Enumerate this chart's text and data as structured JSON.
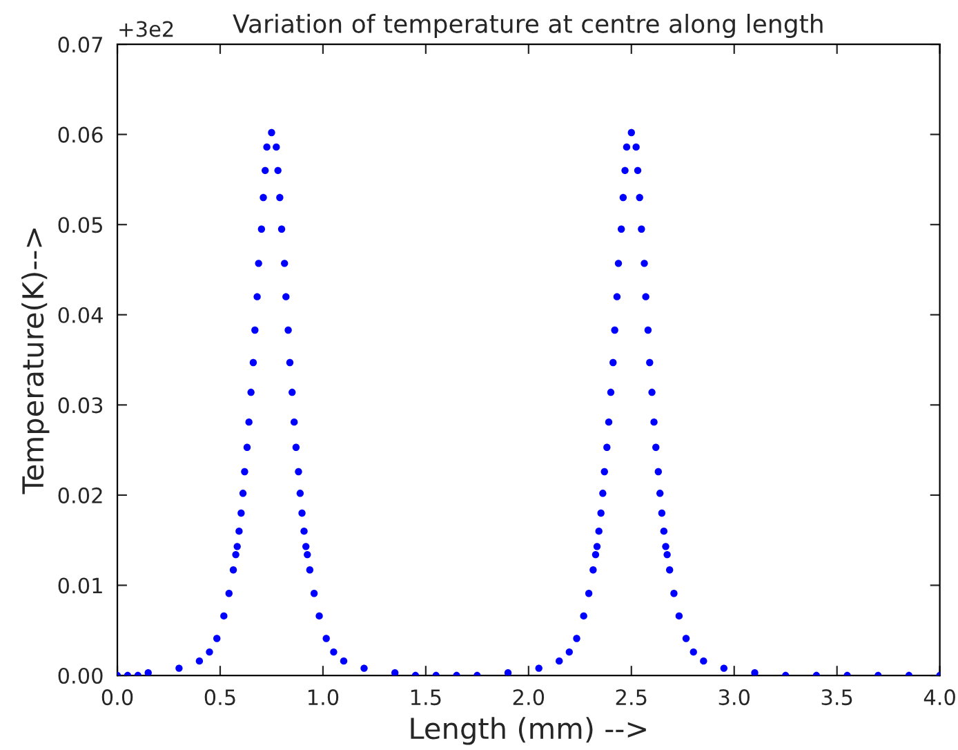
{
  "chart_data": {
    "type": "scatter",
    "title": "Variation of temperature at centre along length",
    "xlabel": "Length (mm) -->",
    "ylabel": "Temperature(K)-->",
    "annotations": [
      "+3e2"
    ],
    "series": [
      {
        "color": "#0000ff",
        "x": [
          0.0,
          0.05,
          0.1,
          0.15,
          0.3,
          0.399,
          0.448,
          0.484,
          0.518,
          0.543,
          0.564,
          0.576,
          0.583,
          0.592,
          0.602,
          0.611,
          0.619,
          0.631,
          0.64,
          0.65,
          0.661,
          0.669,
          0.68,
          0.687,
          0.701,
          0.71,
          0.719,
          0.727,
          0.75,
          0.773,
          0.781,
          0.79,
          0.799,
          0.813,
          0.82,
          0.831,
          0.839,
          0.85,
          0.86,
          0.869,
          0.881,
          0.889,
          0.898,
          0.908,
          0.917,
          0.924,
          0.936,
          0.957,
          0.982,
          1.016,
          1.052,
          1.101,
          1.2,
          1.35,
          1.45,
          1.55,
          1.65,
          1.75,
          1.9,
          2.05,
          2.149,
          2.198,
          2.234,
          2.268,
          2.293,
          2.314,
          2.326,
          2.333,
          2.342,
          2.352,
          2.361,
          2.369,
          2.381,
          2.39,
          2.4,
          2.411,
          2.419,
          2.43,
          2.437,
          2.451,
          2.46,
          2.469,
          2.477,
          2.5,
          2.523,
          2.531,
          2.54,
          2.549,
          2.563,
          2.57,
          2.581,
          2.589,
          2.6,
          2.61,
          2.619,
          2.631,
          2.639,
          2.648,
          2.658,
          2.667,
          2.674,
          2.686,
          2.707,
          2.732,
          2.766,
          2.802,
          2.851,
          2.95,
          3.1,
          3.25,
          3.4,
          3.55,
          3.7,
          3.85,
          4.0
        ],
        "values": [
          0,
          0,
          0,
          0.0003,
          0.0008,
          0.0016,
          0.0026,
          0.0041,
          0.0066,
          0.0091,
          0.0117,
          0.0134,
          0.0143,
          0.016,
          0.018,
          0.0202,
          0.0226,
          0.0253,
          0.0281,
          0.0314,
          0.0347,
          0.0383,
          0.042,
          0.0457,
          0.0495,
          0.053,
          0.056,
          0.0586,
          0.0602,
          0.0586,
          0.056,
          0.053,
          0.0495,
          0.0457,
          0.042,
          0.0383,
          0.0347,
          0.0314,
          0.0281,
          0.0253,
          0.0226,
          0.0202,
          0.018,
          0.016,
          0.0143,
          0.0134,
          0.0117,
          0.0091,
          0.0066,
          0.0041,
          0.0026,
          0.0016,
          0.0008,
          0.0003,
          0,
          0,
          0,
          0,
          0.0003,
          0.0008,
          0.0016,
          0.0026,
          0.0041,
          0.0066,
          0.0091,
          0.0117,
          0.0134,
          0.0143,
          0.016,
          0.018,
          0.0202,
          0.0226,
          0.0253,
          0.0281,
          0.0314,
          0.0347,
          0.0383,
          0.042,
          0.0457,
          0.0495,
          0.053,
          0.056,
          0.0586,
          0.0602,
          0.0586,
          0.056,
          0.053,
          0.0495,
          0.0457,
          0.042,
          0.0383,
          0.0347,
          0.0314,
          0.0281,
          0.0253,
          0.0226,
          0.0202,
          0.018,
          0.016,
          0.0143,
          0.0134,
          0.0117,
          0.0091,
          0.0066,
          0.0041,
          0.0026,
          0.0016,
          0.0008,
          0.0003,
          0,
          0,
          0,
          0,
          0,
          0
        ]
      }
    ],
    "xlim": [
      0,
      4
    ],
    "xticks": [
      {
        "value": 0,
        "label": "0.0"
      },
      {
        "value": 0.5,
        "label": "0.5"
      },
      {
        "value": 1,
        "label": "1.0"
      },
      {
        "value": 1.5,
        "label": "1.5"
      },
      {
        "value": 2,
        "label": "2.0"
      },
      {
        "value": 2.5,
        "label": "2.5"
      },
      {
        "value": 3,
        "label": "3.0"
      },
      {
        "value": 3.5,
        "label": "3.5"
      },
      {
        "value": 4,
        "label": "4.0"
      }
    ],
    "ylim": [
      0,
      0.07
    ],
    "yticks": [
      {
        "value": 0,
        "label": "0.00"
      },
      {
        "value": 0.01,
        "label": "0.01"
      },
      {
        "value": 0.02,
        "label": "0.02"
      },
      {
        "value": 0.03,
        "label": "0.03"
      },
      {
        "value": 0.04,
        "label": "0.04"
      },
      {
        "value": 0.05,
        "label": "0.05"
      },
      {
        "value": 0.06,
        "label": "0.06"
      },
      {
        "value": 0.07,
        "label": "0.07"
      }
    ],
    "marker": "circle",
    "grid": false
  }
}
